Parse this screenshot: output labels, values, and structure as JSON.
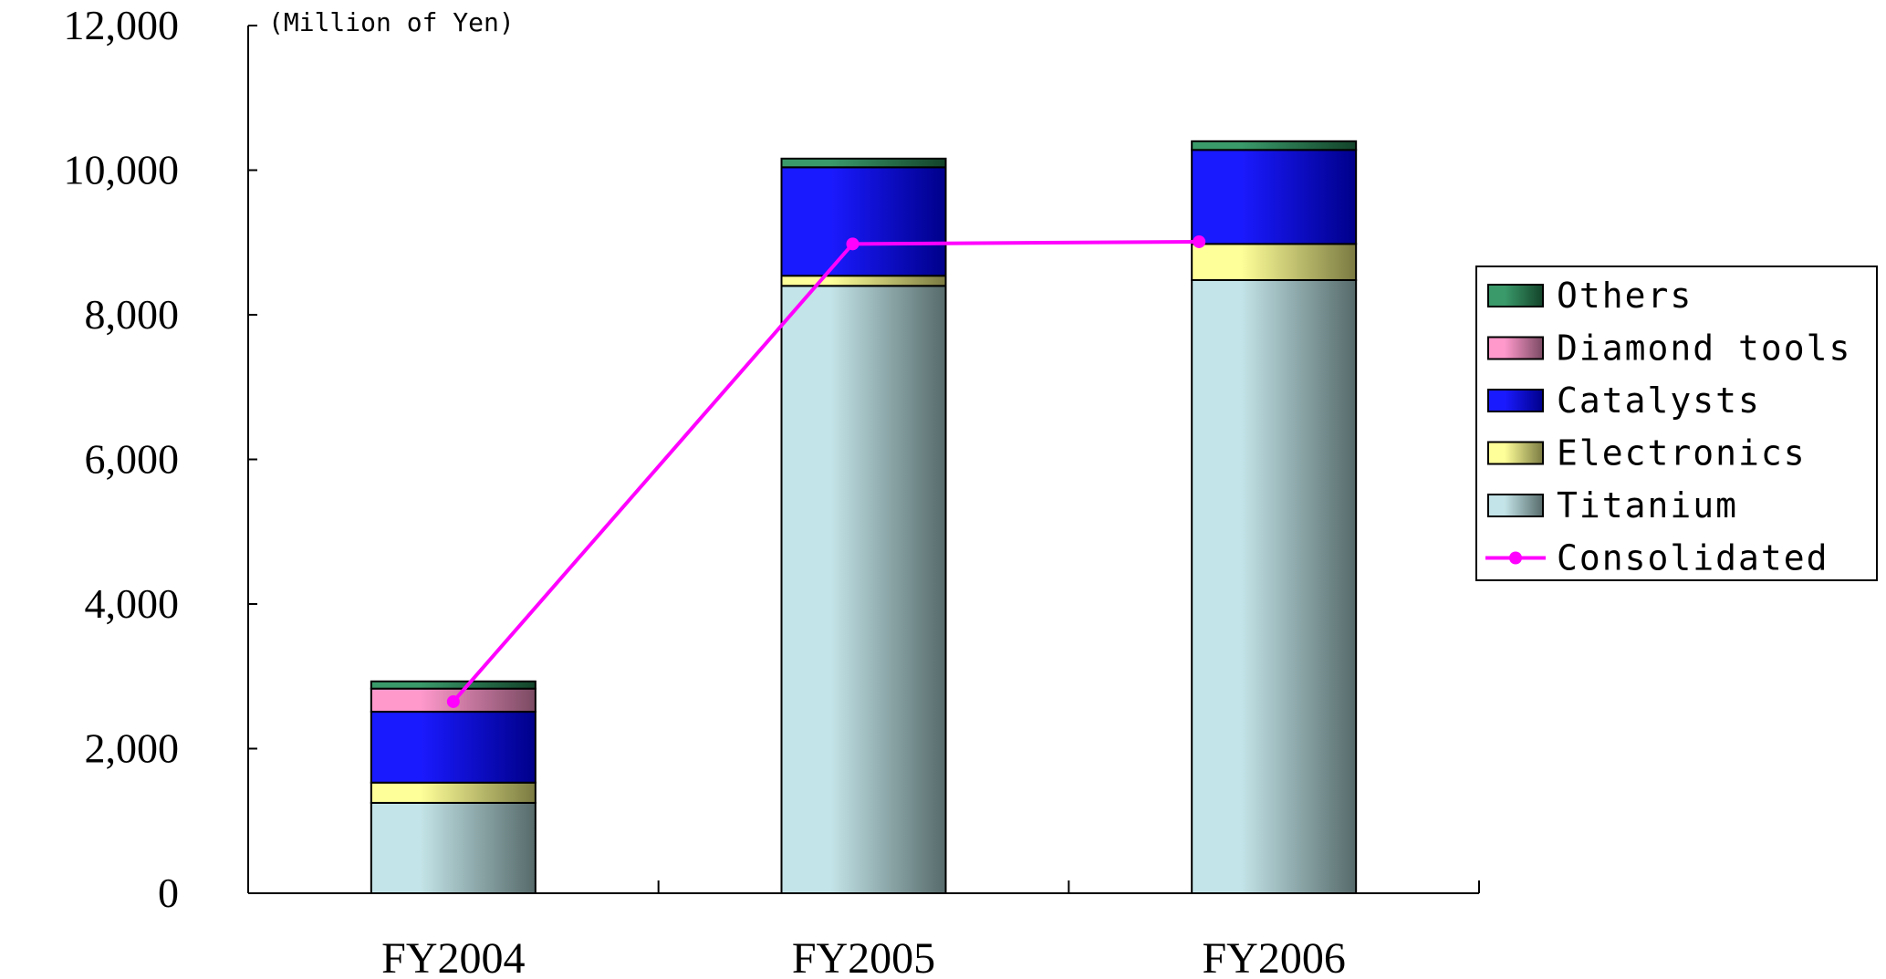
{
  "chart_data": {
    "type": "bar",
    "stacked": true,
    "unit_label": "(Million of Yen)",
    "categories": [
      "FY2004",
      "FY2005",
      "FY2006"
    ],
    "ylim": [
      0,
      12000
    ],
    "yticks": [
      0,
      2000,
      4000,
      6000,
      8000,
      10000,
      12000
    ],
    "ytick_labels": [
      "0",
      "2,000",
      "4,000",
      "6,000",
      "8,000",
      "10,000",
      "12,000"
    ],
    "series": [
      {
        "name": "Titanium",
        "values": [
          1250,
          8400,
          8480
        ],
        "color_light": "#c3e4e8",
        "color_dark": "#566a6a"
      },
      {
        "name": "Electronics",
        "values": [
          280,
          140,
          500
        ],
        "color_light": "#ffff99",
        "color_dark": "#7a7a42"
      },
      {
        "name": "Catalysts",
        "values": [
          980,
          1500,
          1300
        ],
        "color_light": "#1a1aff",
        "color_dark": "#00008a"
      },
      {
        "name": "Diamond tools",
        "values": [
          320,
          0,
          0
        ],
        "color_light": "#ff99cc",
        "color_dark": "#7a4a62"
      },
      {
        "name": "Others",
        "values": [
          100,
          120,
          120
        ],
        "color_light": "#3a9a6a",
        "color_dark": "#13432a"
      }
    ],
    "line_series": {
      "name": "Consolidated",
      "values": [
        2650,
        8980,
        9010
      ],
      "color": "#ff00ff"
    },
    "legend": {
      "placement": "right",
      "items": [
        "Others",
        "Diamond tools",
        "Catalysts",
        "Electronics",
        "Titanium",
        "Consolidated"
      ]
    }
  }
}
